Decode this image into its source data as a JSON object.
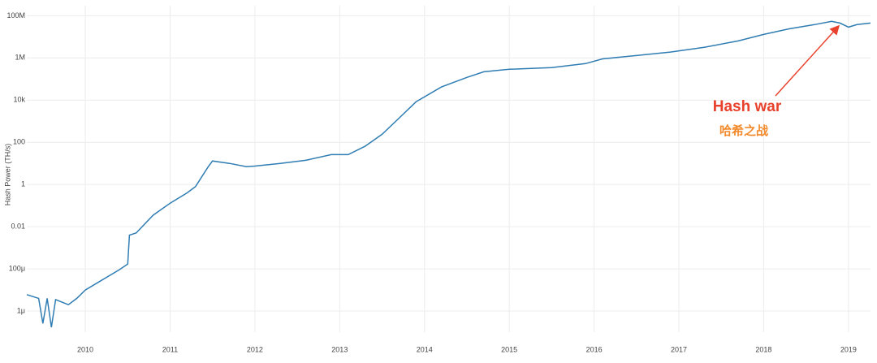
{
  "chart_data": {
    "type": "line",
    "y_label": "Hash Power (TH/s)",
    "annotations": [
      "Hash war",
      "哈希之战"
    ],
    "log_y": true,
    "grid": true,
    "xlim": [
      2009.31,
      2019.26
    ],
    "xticks": [
      2010,
      2011,
      2012,
      2013,
      2014,
      2015,
      2016,
      2017,
      2018,
      2019
    ],
    "ylim": [
      1e-07,
      300000000.0
    ],
    "yticks": [
      {
        "value": 100000000,
        "label": "100M"
      },
      {
        "value": 1000000,
        "label": "1M"
      },
      {
        "value": 10000,
        "label": "10k"
      },
      100,
      1,
      0.01,
      {
        "value": 0.0001,
        "label": "100μ"
      },
      {
        "value": 1e-06,
        "label": "1μ"
      }
    ],
    "series": [
      {
        "name": "Hash Power",
        "color": "#2f7db3",
        "x": [
          2009.31,
          2009.45,
          2009.5,
          2009.55,
          2009.6,
          2009.65,
          2009.8,
          2009.9,
          2010.0,
          2010.2,
          2010.4,
          2010.5,
          2010.52,
          2010.6,
          2010.8,
          2011.0,
          2011.2,
          2011.3,
          2011.45,
          2011.5,
          2011.7,
          2011.9,
          2012.0,
          2012.3,
          2012.6,
          2012.9,
          2013.1,
          2013.3,
          2013.5,
          2013.7,
          2013.9,
          2014.2,
          2014.5,
          2014.7,
          2015.0,
          2015.5,
          2015.9,
          2016.1,
          2016.5,
          2016.9,
          2017.3,
          2017.7,
          2018.0,
          2018.3,
          2018.6,
          2018.8,
          2018.9,
          2019.0,
          2019.1,
          2019.26
        ],
        "values": [
          6e-06,
          4e-06,
          2.6e-07,
          4e-06,
          1.7e-07,
          3.5e-06,
          2e-06,
          4e-06,
          1e-05,
          3e-05,
          9e-05,
          0.00017,
          0.004,
          0.005,
          0.035,
          0.13,
          0.4,
          0.8,
          7,
          13,
          10,
          7,
          7.5,
          10,
          14,
          26,
          26,
          65,
          240,
          1400,
          8300,
          42000,
          120000,
          220000,
          290000,
          350000,
          540000,
          900000,
          1300000,
          1900000,
          3200000,
          6400000,
          13000000,
          24000000,
          38000000,
          54000000,
          45000000,
          29000000,
          38000000,
          45000000
        ]
      }
    ]
  }
}
